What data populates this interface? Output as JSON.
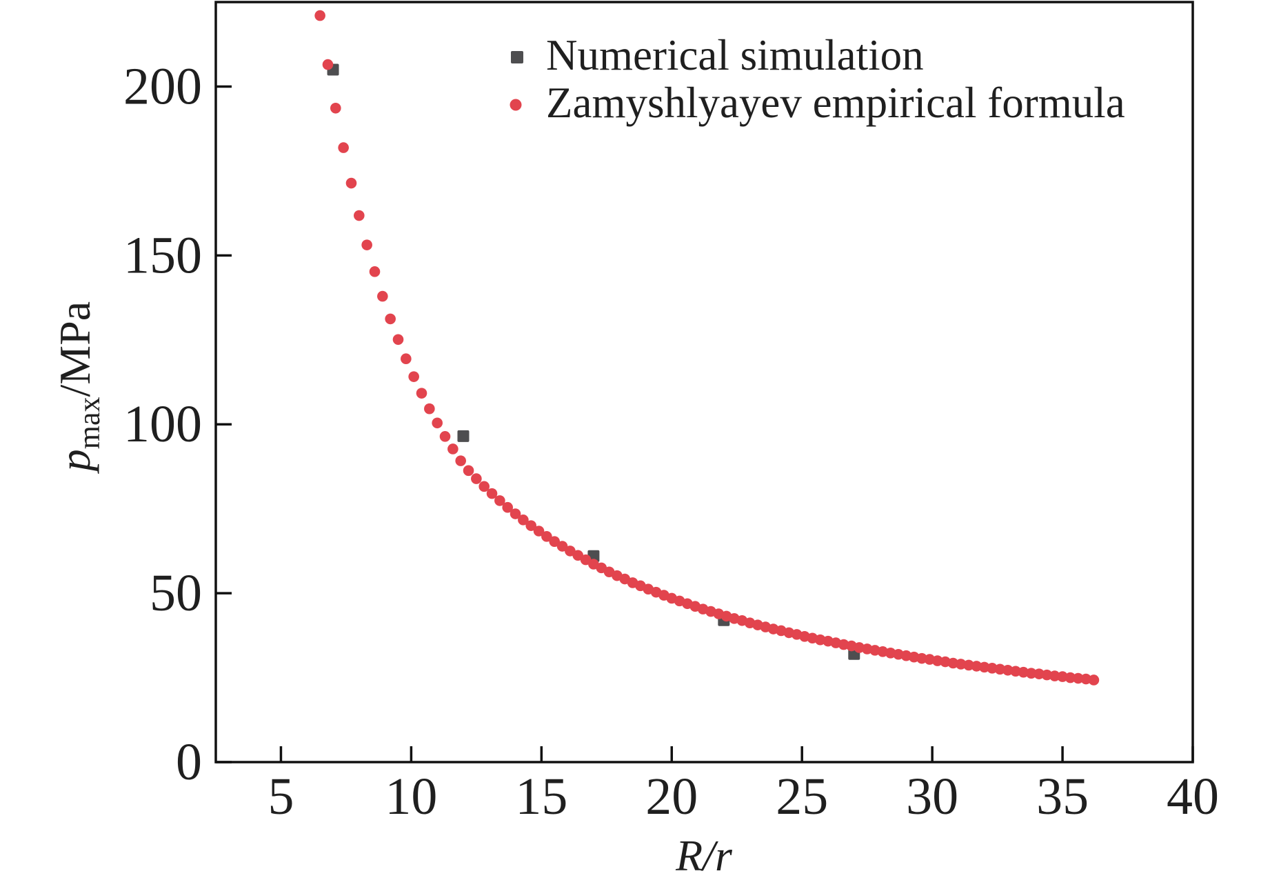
{
  "colors": {
    "background": "#ffffff",
    "axis": "#111111",
    "text": "#1f1f1f",
    "simulation_gray": "#4e4e50",
    "empirical_red": "#e2444e"
  },
  "chart_data": {
    "type": "scatter",
    "title": "",
    "xlabel": "R/r",
    "ylabel": "p_max/MPa",
    "ylabel_parts": {
      "main": "p",
      "sub": "max",
      "rest": "/MPa"
    },
    "x_range": [
      2.5,
      40
    ],
    "y_range": [
      0,
      225
    ],
    "x_ticks": [
      5,
      10,
      15,
      20,
      25,
      30,
      35,
      40
    ],
    "y_ticks": [
      0,
      50,
      100,
      150,
      200
    ],
    "grid": false,
    "legend_position": "top-center-inside",
    "series": [
      {
        "name": "Numerical simulation",
        "marker": "square",
        "color": "#4e4e50",
        "x": [
          7,
          12,
          17,
          22,
          27
        ],
        "y": [
          205,
          96.5,
          61,
          42,
          32
        ]
      },
      {
        "name": "Zamyshlyayev empirical formula",
        "marker": "circle",
        "color": "#e2444e",
        "x": [
          6.5,
          6.8,
          7.1,
          7.4,
          7.7,
          8.0,
          8.3,
          8.6,
          8.9,
          9.2,
          9.5,
          9.8,
          10.1,
          10.4,
          10.7,
          11.0,
          11.3,
          11.6,
          11.9,
          12.2,
          12.5,
          12.8,
          13.1,
          13.4,
          13.7,
          14.0,
          14.3,
          14.6,
          14.9,
          15.2,
          15.5,
          15.8,
          16.1,
          16.4,
          16.7,
          17.0,
          17.3,
          17.6,
          17.9,
          18.2,
          18.5,
          18.8,
          19.1,
          19.4,
          19.7,
          20.0,
          20.3,
          20.6,
          20.9,
          21.2,
          21.5,
          21.8,
          22.1,
          22.4,
          22.7,
          23.0,
          23.3,
          23.6,
          23.9,
          24.2,
          24.5,
          24.8,
          25.1,
          25.4,
          25.7,
          26.0,
          26.3,
          26.6,
          26.9,
          27.2,
          27.5,
          27.8,
          28.1,
          28.4,
          28.7,
          29.0,
          29.3,
          29.6,
          29.9,
          30.2,
          30.5,
          30.8,
          31.1,
          31.4,
          31.7,
          32.0,
          32.3,
          32.6,
          32.9,
          33.2,
          33.5,
          33.8,
          34.1,
          34.4,
          34.7,
          35.0,
          35.3,
          35.6,
          35.9,
          36.2
        ],
        "y": [
          221.0,
          206.5,
          193.6,
          181.9,
          171.4,
          161.8,
          153.1,
          145.2,
          137.9,
          131.2,
          125.1,
          119.4,
          114.1,
          109.2,
          104.6,
          100.4,
          96.4,
          92.7,
          89.2,
          86.3,
          83.9,
          81.6,
          79.5,
          77.4,
          75.4,
          73.5,
          71.7,
          70.0,
          68.4,
          66.8,
          65.3,
          63.9,
          62.5,
          61.2,
          59.9,
          58.6,
          57.5,
          56.3,
          55.2,
          54.2,
          53.1,
          52.2,
          51.2,
          50.3,
          49.4,
          48.5,
          47.7,
          46.9,
          46.1,
          45.3,
          44.6,
          43.9,
          43.2,
          42.5,
          41.9,
          41.2,
          40.6,
          40.0,
          39.4,
          38.9,
          38.3,
          37.8,
          37.2,
          36.7,
          36.2,
          35.8,
          35.3,
          34.8,
          34.4,
          33.9,
          33.5,
          33.1,
          32.7,
          32.3,
          31.9,
          31.5,
          31.1,
          30.7,
          30.4,
          30.0,
          29.7,
          29.3,
          29.0,
          28.7,
          28.4,
          28.1,
          27.8,
          27.5,
          27.2,
          26.9,
          26.6,
          26.3,
          26.1,
          25.8,
          25.5,
          25.3,
          25.0,
          24.8,
          24.6,
          24.3
        ]
      }
    ]
  }
}
